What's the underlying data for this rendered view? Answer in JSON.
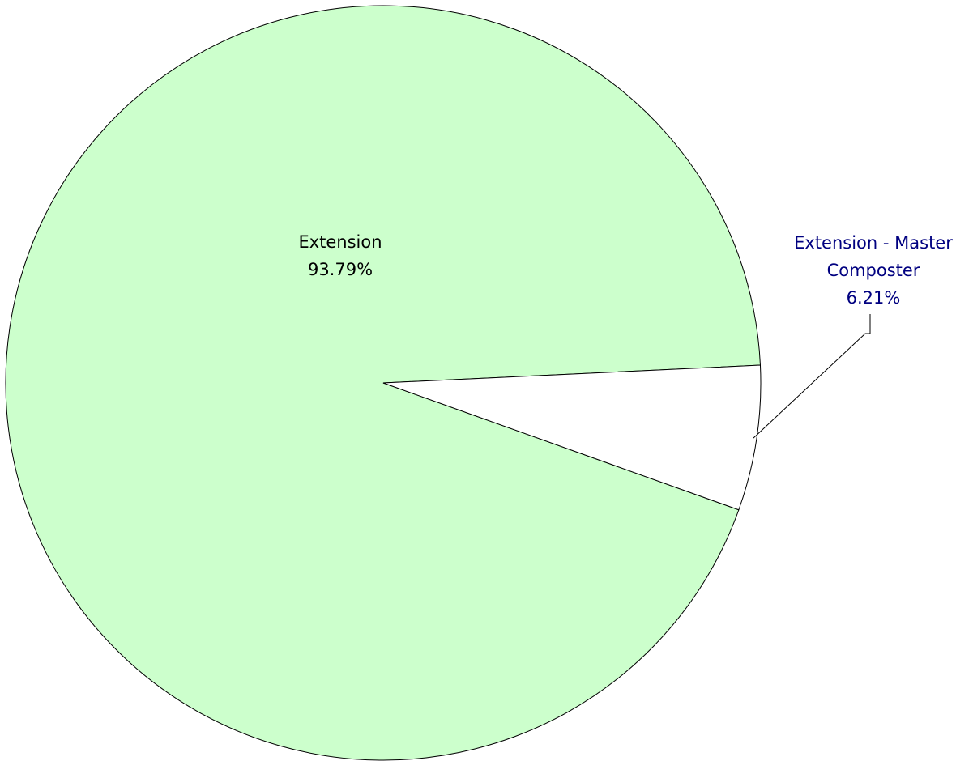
{
  "chart_data": {
    "type": "pie",
    "slices": [
      {
        "label_lines": [
          "Extension"
        ],
        "value": 93.79,
        "value_label": "93.79%",
        "color": "#ccffcc",
        "label_color": "#000000",
        "label_placement": "inside"
      },
      {
        "label_lines": [
          "Extension - Master",
          "Composter"
        ],
        "value": 6.21,
        "value_label": "6.21%",
        "color": "#ffffff",
        "label_color": "#000080",
        "label_placement": "outside-right"
      }
    ]
  }
}
